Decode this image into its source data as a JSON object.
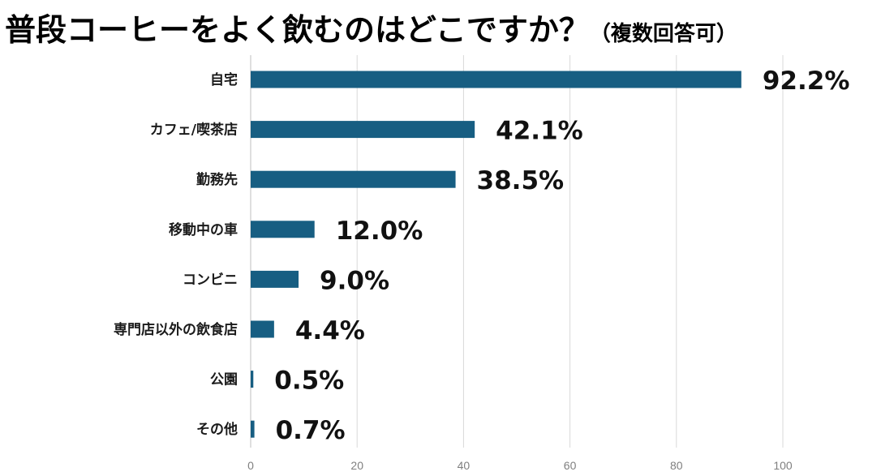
{
  "title": {
    "main": "普段コーヒーをよく飲むのはどこですか？",
    "sub": "（複数回答可）"
  },
  "chart_data": {
    "type": "bar",
    "orientation": "horizontal",
    "categories": [
      "自宅",
      "カフェ/喫茶店",
      "勤務先",
      "移動中の車",
      "コンビニ",
      "専門店以外の飲食店",
      "公園",
      "その他"
    ],
    "values": [
      92.2,
      42.1,
      38.5,
      12.0,
      9.0,
      4.4,
      0.5,
      0.7
    ],
    "value_labels": [
      "92.2%",
      "42.1%",
      "38.5%",
      "12.0%",
      "9.0%",
      "4.4%",
      "0.5%",
      "0.7%"
    ],
    "xlim": [
      0,
      100
    ],
    "x_ticks": [
      0,
      20,
      40,
      60,
      80,
      100
    ],
    "grid": true,
    "legend": "none",
    "bar_color": "#175e82"
  }
}
